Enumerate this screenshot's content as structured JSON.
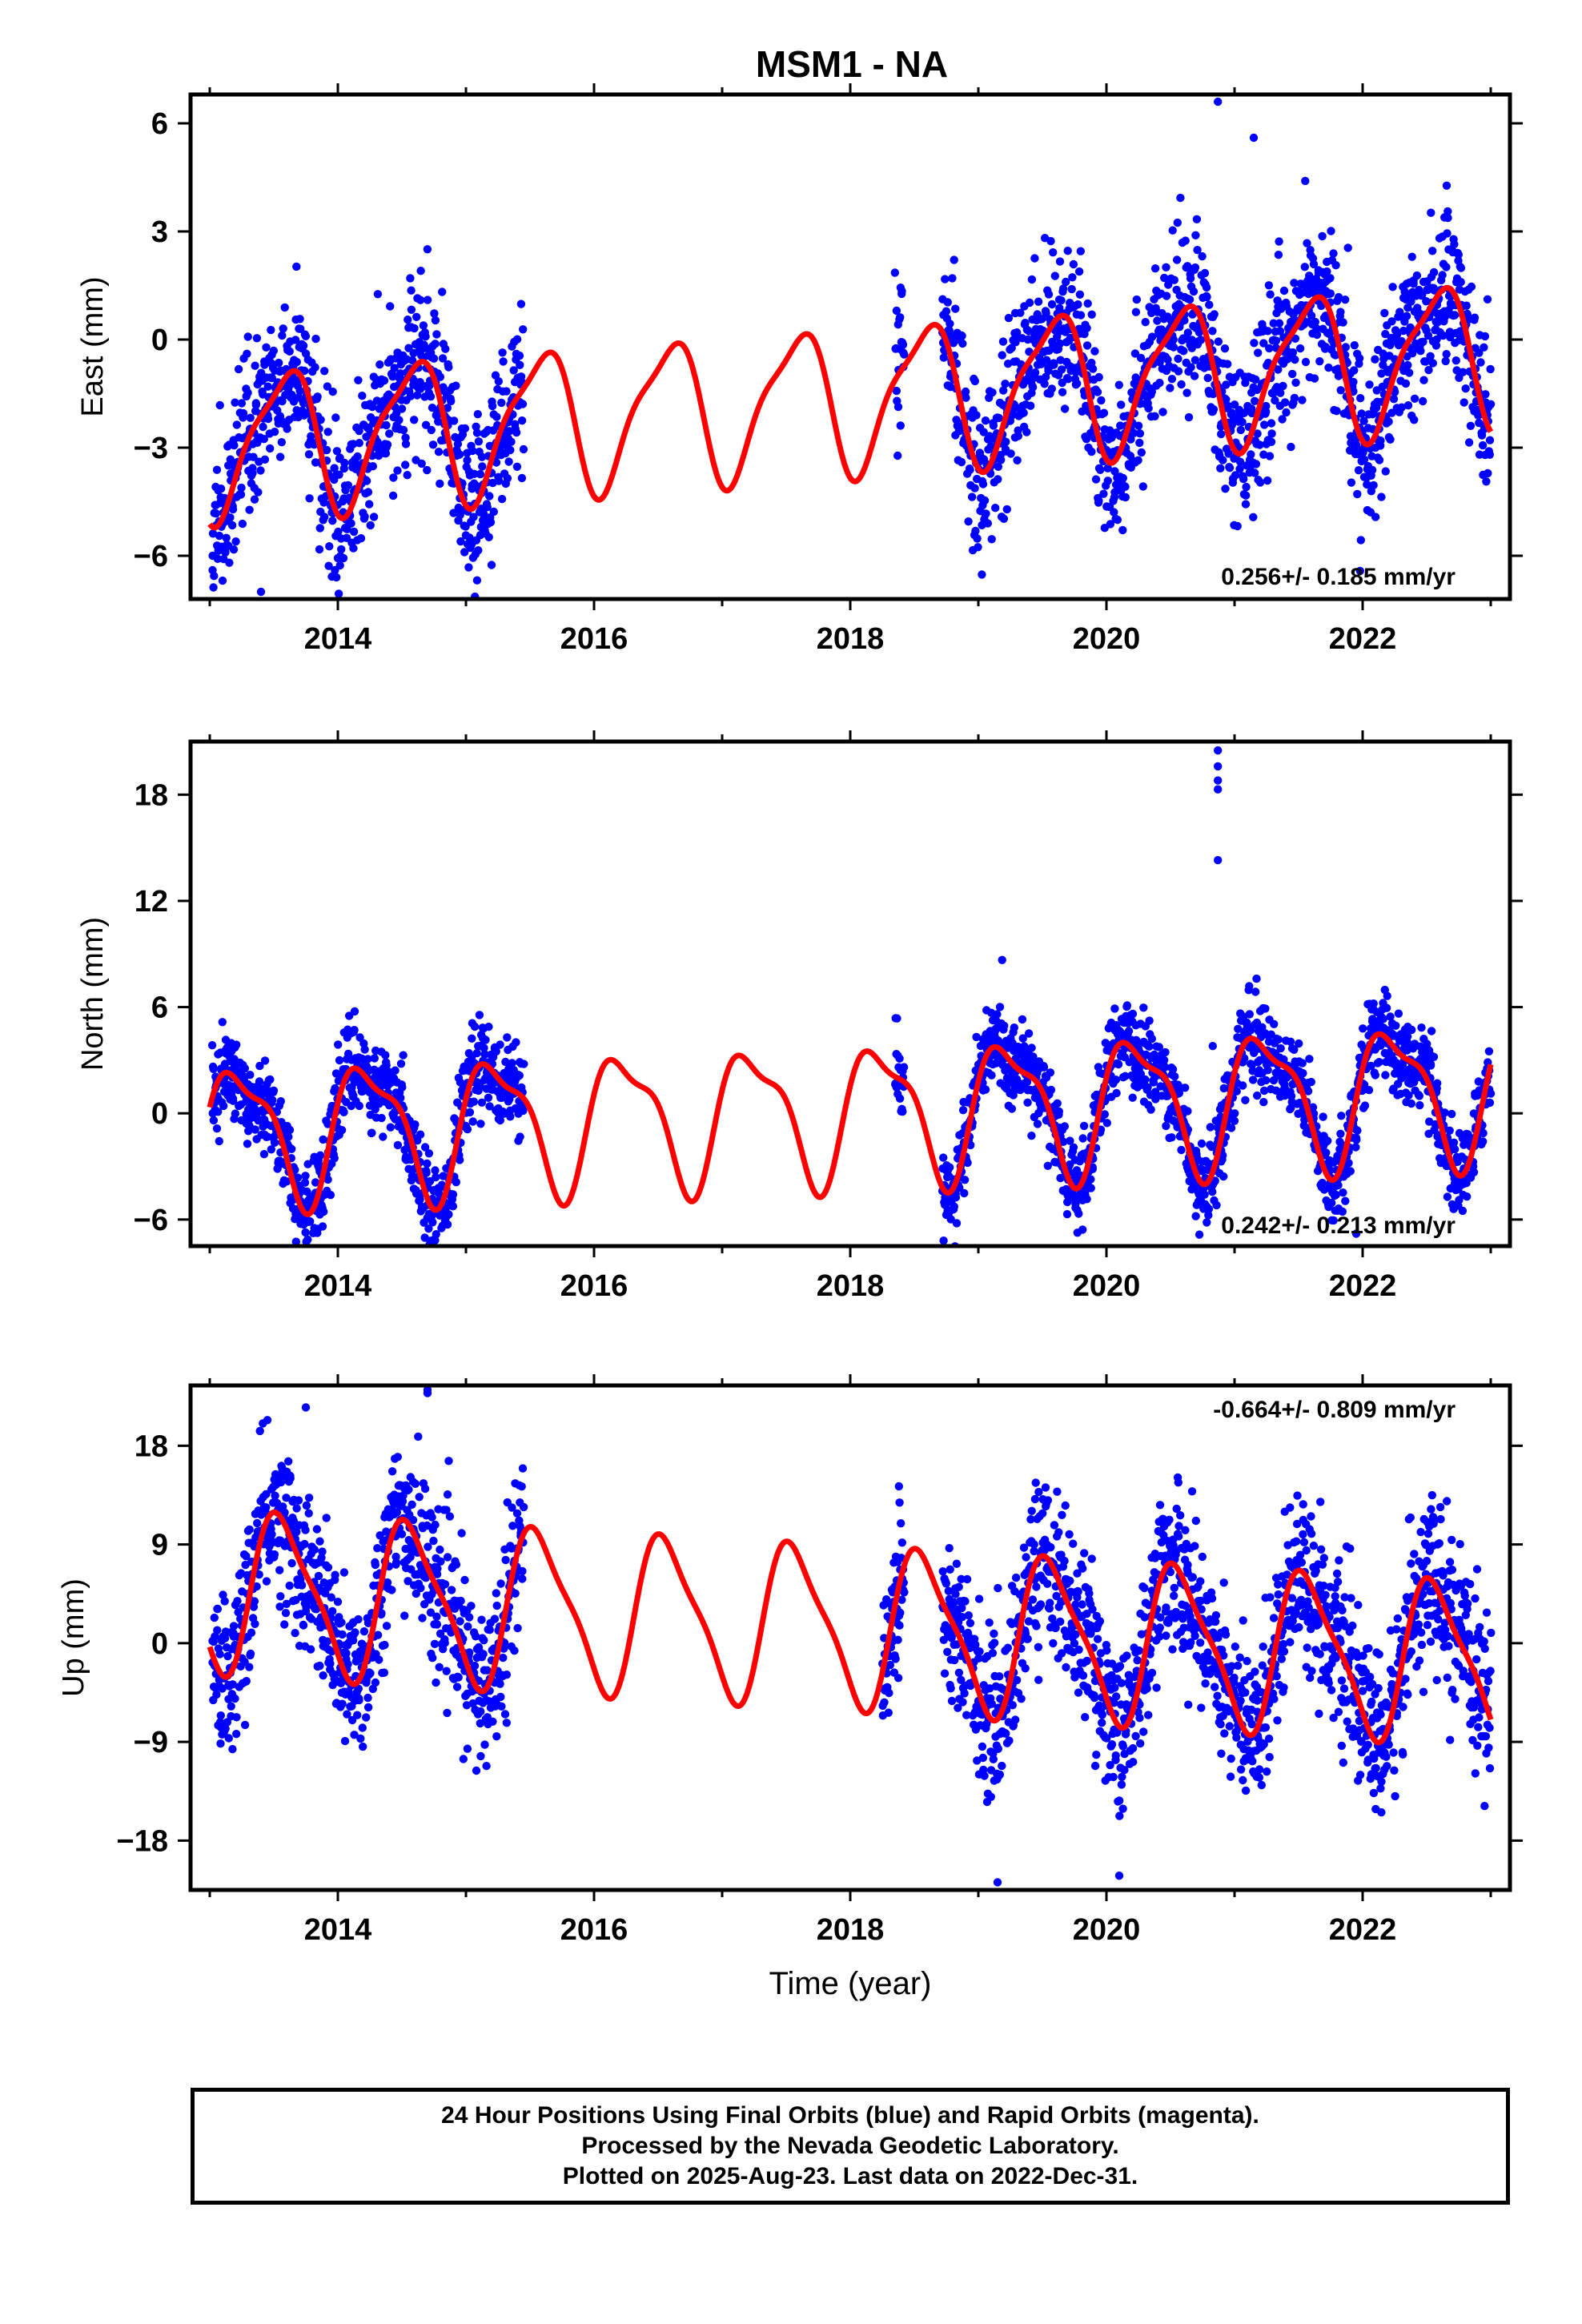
{
  "title": "MSM1 - NA",
  "caption": [
    "24 Hour Positions Using Final Orbits (blue) and Rapid Orbits (magenta).",
    "Processed by the Nevada Geodetic Laboratory.",
    "Plotted on 2025-Aug-23. Last data on 2022-Dec-31."
  ],
  "colors": {
    "points": "#0000ff",
    "model": "#ff0000",
    "frame": "#000000"
  },
  "chart_data": [
    {
      "type": "scatter",
      "title": "MSM1 - NA",
      "ylabel": "East (mm)",
      "xlabel": "",
      "xlim": [
        2012.85,
        2023.15
      ],
      "ylim": [
        -7.2,
        6.8
      ],
      "xticks": [
        "2014",
        "2016",
        "2018",
        "2020",
        "2022"
      ],
      "yticks": [
        "6",
        "3",
        "0",
        "-3",
        "-6"
      ],
      "rate": "0.256+/- 0.185 mm/yr",
      "model": {
        "offset": -1.64,
        "trend": 0.256,
        "amp_cos": -1.7,
        "amp_sin": -0.9,
        "amp_cos2": -0.5,
        "amp_sin2": 0.0,
        "t0": 2018.0
      },
      "data_segments": [
        [
          2013.02,
          2015.45
        ],
        [
          2018.35,
          2018.42
        ],
        [
          2018.72,
          2023.0
        ]
      ],
      "scatter_sd": 1.1,
      "outliers": [
        [
          2020.87,
          6.6
        ],
        [
          2021.15,
          5.6
        ],
        [
          2013.4,
          -7.0
        ],
        [
          2020.83,
          -2.0
        ]
      ]
    },
    {
      "type": "scatter",
      "ylabel": "North (mm)",
      "xlabel": "",
      "xlim": [
        2012.85,
        2023.15
      ],
      "ylim": [
        -7.5,
        21.0
      ],
      "xticks": [
        "2014",
        "2016",
        "2018",
        "2020",
        "2022"
      ],
      "yticks": [
        "18",
        "12",
        "6",
        "0",
        "-6"
      ],
      "rate": "0.242+/- 0.213 mm/yr",
      "model": {
        "offset": 0.1,
        "trend": 0.242,
        "amp_cos": 0.35,
        "amp_sin": 3.65,
        "amp_cos2": 1.1,
        "amp_sin2": 0.55,
        "t0": 2018.0
      },
      "data_segments": [
        [
          2013.02,
          2015.45
        ],
        [
          2018.35,
          2018.42
        ],
        [
          2018.72,
          2023.0
        ]
      ],
      "scatter_sd": 1.2,
      "outliers": [
        [
          2020.87,
          20.5
        ],
        [
          2020.87,
          19.6
        ],
        [
          2020.87,
          18.8
        ],
        [
          2020.87,
          18.3
        ],
        [
          2020.87,
          14.3
        ],
        [
          2020.83,
          3.8
        ],
        [
          2021.95,
          -6.8
        ]
      ]
    },
    {
      "type": "scatter",
      "ylabel": "Up (mm)",
      "xlabel": "Time (year)",
      "xlim": [
        2012.85,
        2023.15
      ],
      "ylim": [
        -22.5,
        23.5
      ],
      "xticks": [
        "2014",
        "2016",
        "2018",
        "2020",
        "2022"
      ],
      "yticks": [
        "18",
        "9",
        "0",
        "-9",
        "-18"
      ],
      "rate": "-0.664+/- 0.809 mm/yr",
      "model": {
        "offset": 1.55,
        "trend": -0.664,
        "amp_cos": -6.3,
        "amp_sin": -3.0,
        "amp_cos2": 1.1,
        "amp_sin2": -1.3,
        "t0": 2018.0
      },
      "data_segments": [
        [
          2013.02,
          2015.45
        ],
        [
          2018.25,
          2018.42
        ],
        [
          2018.72,
          2023.0
        ]
      ],
      "scatter_sd": 3.6,
      "outliers": [
        [
          2014.7,
          22.8
        ],
        [
          2014.7,
          23.1
        ],
        [
          2013.75,
          21.5
        ],
        [
          2019.15,
          -21.8
        ],
        [
          2020.1,
          -21.2
        ],
        [
          2018.38,
          14.3
        ]
      ]
    }
  ]
}
